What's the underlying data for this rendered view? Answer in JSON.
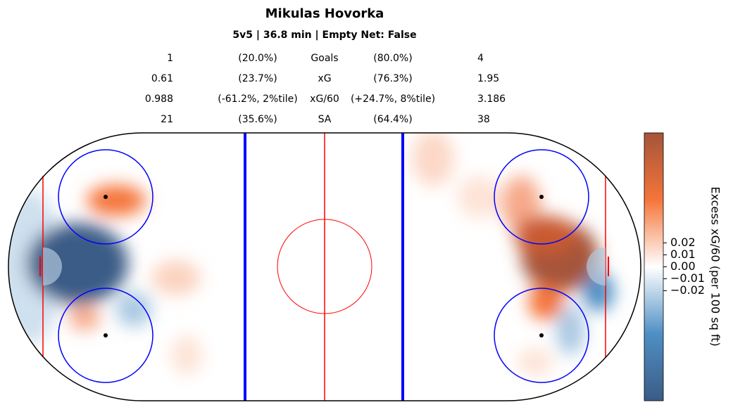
{
  "chart_data": {
    "type": "heatmap",
    "title": "Mikulas Hovorka",
    "subtitle": "5v5 | 36.8 min | Empty Net: False",
    "stats": [
      [
        "1",
        "(20.0%)",
        "Goals",
        "(80.0%)",
        "4"
      ],
      [
        "0.61",
        "(23.7%)",
        "xG",
        "(76.3%)",
        "1.95"
      ],
      [
        "0.988",
        "(-61.2%, 2%tile)",
        "xG/60",
        "(+24.7%, 8%tile)",
        "3.186"
      ],
      [
        "21",
        "(35.6%)",
        "SA",
        "(64.4%)",
        "38"
      ]
    ],
    "colorbar": {
      "label": "Excess xG/60 (per 100 sq ft)",
      "lim": [
        -0.112,
        0.112
      ],
      "ticks": [
        {
          "value": 0.02,
          "label": "0.02"
        },
        {
          "value": 0.01,
          "label": "0.01"
        },
        {
          "value": 0,
          "label": "0.00"
        },
        {
          "value": -0.01,
          "label": "−0.01"
        },
        {
          "value": -0.02,
          "label": "−0.02"
        }
      ],
      "colors": [
        "#3b5b86",
        "#4f8fc4",
        "#ffffff",
        "#f5753a",
        "#a5543a"
      ]
    }
  }
}
